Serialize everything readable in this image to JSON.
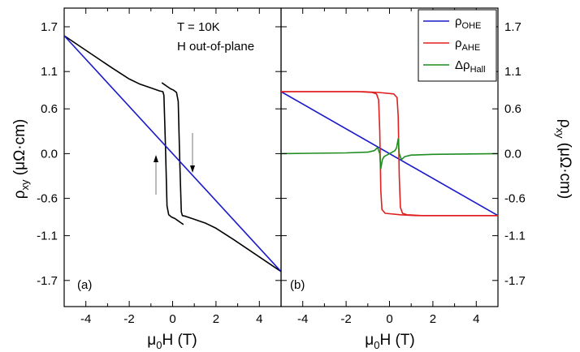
{
  "chart_data": [
    {
      "panel": "(a)",
      "type": "line",
      "xlabel_base": "μ",
      "xlabel_sub": "0",
      "xlabel_rest": "H (T)",
      "ylabel_base": "ρ",
      "ylabel_sub": "xy",
      "ylabel_rest": " (μΩ·cm)",
      "xlim": [
        -5,
        5
      ],
      "ylim": [
        -2.05,
        1.95
      ],
      "xticks": [
        "-4",
        "-2",
        "0",
        "2",
        "4"
      ],
      "xtick_values": [
        -4,
        -2,
        0,
        2,
        4
      ],
      "yticks": [
        "1.7",
        "1.1",
        "0.6",
        "0.0",
        "-0.6",
        "-1.1",
        "-1.7"
      ],
      "ytick_values": [
        1.7,
        1.1,
        0.6,
        0.0,
        -0.6,
        -1.1,
        -1.7
      ],
      "annotations": [
        "T = 10K",
        "H out-of-plane"
      ],
      "grid": false,
      "series": [
        {
          "color": "#000000",
          "x": [
            -5,
            -2.8,
            -2.0,
            -1.5,
            -1.0,
            -0.6,
            -0.45,
            -0.4,
            -0.33,
            -0.26,
            -0.18,
            -0.05,
            0.1,
            0.25,
            0.4,
            0.5
          ],
          "y": [
            1.58,
            1.15,
            1.0,
            0.93,
            0.88,
            0.84,
            0.83,
            0.78,
            0.1,
            -0.7,
            -0.82,
            -0.85,
            -0.87,
            -0.9,
            -0.93,
            -0.95
          ]
        },
        {
          "color": "#000000",
          "x": [
            -0.5,
            -0.4,
            -0.25,
            -0.1,
            0.05,
            0.18,
            0.26,
            0.33,
            0.4,
            0.45,
            0.6,
            1.0,
            1.5,
            2.0,
            2.8,
            5
          ],
          "y": [
            0.95,
            0.93,
            0.9,
            0.87,
            0.85,
            0.82,
            0.7,
            -0.1,
            -0.78,
            -0.83,
            -0.84,
            -0.88,
            -0.93,
            -1.0,
            -1.15,
            -1.58
          ]
        },
        {
          "color": "#1a1acc",
          "x": [
            -5,
            5
          ],
          "y": [
            1.58,
            -1.58
          ]
        }
      ]
    },
    {
      "panel": "(b)",
      "type": "line",
      "xlabel_base": "μ",
      "xlabel_sub": "0",
      "xlabel_rest": "H (T)",
      "ylabel_base": "ρ",
      "ylabel_sub": "xy",
      "ylabel_rest": " (μΩ·cm)",
      "xlim": [
        -5,
        5
      ],
      "ylim": [
        -2.05,
        1.95
      ],
      "xticks": [
        "-4",
        "-2",
        "0",
        "2",
        "4"
      ],
      "xtick_values": [
        -4,
        -2,
        0,
        2,
        4
      ],
      "yticks": [
        "1.7",
        "1.1",
        "0.6",
        "0.0",
        "-0.6",
        "-1.1",
        "-1.7"
      ],
      "ytick_values": [
        1.7,
        1.1,
        0.6,
        0.0,
        -0.6,
        -1.1,
        -1.7
      ],
      "legend_position": "top-right",
      "grid": false,
      "series": [
        {
          "name_base": "ρ",
          "name_sub": "OHE",
          "color": "#1a1acc",
          "x": [
            -5,
            5
          ],
          "y": [
            0.83,
            -0.83
          ]
        },
        {
          "name_base": "ρ",
          "name_sub": "AHE",
          "color": "#e02020",
          "x": [
            -5,
            -1.5,
            -0.8,
            -0.6,
            -0.5,
            -0.45,
            -0.4,
            -0.35,
            -0.2,
            0.5,
            1.2,
            2.0,
            5
          ],
          "y": [
            0.83,
            0.83,
            0.82,
            0.8,
            0.72,
            0.3,
            -0.5,
            -0.75,
            -0.8,
            -0.82,
            -0.83,
            -0.83,
            -0.83
          ]
        },
        {
          "name_base": "ρ",
          "name_sub": "AHE",
          "legend": false,
          "color": "#e02020",
          "x": [
            -5,
            -2.0,
            -1.2,
            -0.5,
            0.2,
            0.35,
            0.4,
            0.45,
            0.5,
            0.6,
            0.8,
            1.5,
            5
          ],
          "y": [
            0.83,
            0.83,
            0.83,
            0.82,
            0.8,
            0.75,
            0.5,
            -0.3,
            -0.72,
            -0.8,
            -0.82,
            -0.83,
            -0.83
          ]
        },
        {
          "name_base": "Δρ",
          "name_sub": "Hall",
          "color": "#1e8c1e",
          "x": [
            -5,
            -2.0,
            -1.0,
            -0.7,
            -0.55,
            -0.45,
            -0.4,
            -0.33,
            -0.25,
            0,
            0.25,
            0.33,
            0.4,
            0.45,
            0.55,
            0.7,
            1.0,
            2.0,
            5
          ],
          "y": [
            0.0,
            0.01,
            0.02,
            0.04,
            0.08,
            0.0,
            -0.2,
            -0.08,
            -0.04,
            0.0,
            0.04,
            0.08,
            0.2,
            0.0,
            -0.08,
            -0.04,
            -0.02,
            -0.01,
            0.0
          ]
        }
      ]
    }
  ]
}
